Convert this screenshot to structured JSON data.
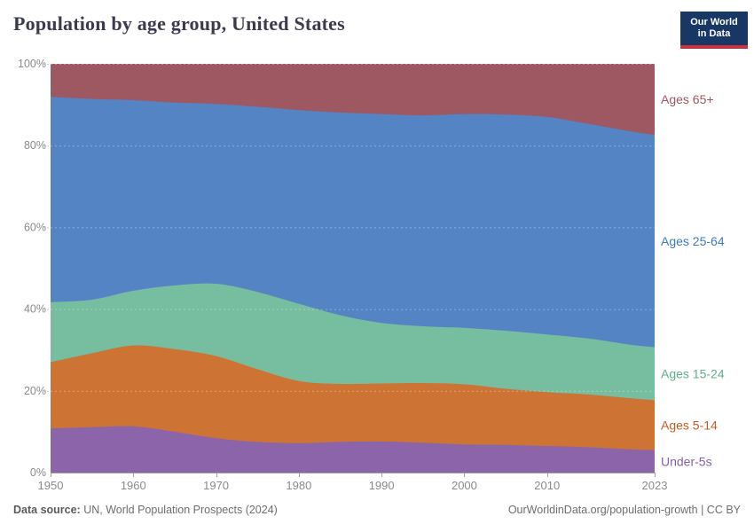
{
  "header": {
    "title": "Population by age group, United States"
  },
  "brand": {
    "line1": "Our World",
    "line2": "in Data"
  },
  "footer": {
    "source_label": "Data source:",
    "source_text": " UN, World Population Prospects (2024)",
    "credit": "OurWorldinData.org/population-growth | CC BY"
  },
  "chart_data": {
    "type": "area",
    "stacked": true,
    "title": "Population by age group, United States",
    "unit": "%",
    "ylim": [
      0,
      100
    ],
    "yticks": [
      0,
      20,
      40,
      60,
      80,
      100
    ],
    "ytick_labels": [
      "0%",
      "20%",
      "40%",
      "60%",
      "80%",
      "100%"
    ],
    "xticks": [
      1950,
      1960,
      1970,
      1980,
      1990,
      2000,
      2010,
      2023
    ],
    "xtick_labels": [
      "1950",
      "1960",
      "1970",
      "1980",
      "1990",
      "2000",
      "2010",
      "2023"
    ],
    "grid": "dashed-horizontal",
    "legend_position": "right",
    "x": [
      1950,
      1955,
      1960,
      1965,
      1970,
      1975,
      1980,
      1985,
      1990,
      1995,
      2000,
      2005,
      2010,
      2015,
      2020,
      2023
    ],
    "series": [
      {
        "id": "under-5s",
        "name": "Under-5s",
        "color": "#8c64aa",
        "label_color": "#8461a8",
        "values": [
          10.8,
          11.1,
          11.3,
          10.0,
          8.4,
          7.5,
          7.2,
          7.5,
          7.6,
          7.3,
          6.9,
          6.8,
          6.5,
          6.2,
          5.7,
          5.5
        ]
      },
      {
        "id": "ages-5-14",
        "name": "Ages 5-14",
        "color": "#cd7334",
        "label_color": "#c55d23",
        "values": [
          16.2,
          18.1,
          19.8,
          20.2,
          20.1,
          17.8,
          15.2,
          14.2,
          14.2,
          14.6,
          14.7,
          13.7,
          13.2,
          12.9,
          12.5,
          12.2
        ]
      },
      {
        "id": "ages-15-24",
        "name": "Ages 15-24",
        "color": "#77bd9f",
        "label_color": "#5fae8c",
        "values": [
          14.7,
          13.1,
          13.4,
          15.6,
          17.7,
          18.9,
          18.9,
          16.8,
          14.8,
          13.9,
          13.8,
          14.2,
          14.1,
          13.7,
          13.1,
          13.0
        ]
      },
      {
        "id": "ages-25-64",
        "name": "Ages 25-64",
        "color": "#5584c5",
        "label_color": "#4079bc",
        "values": [
          50.2,
          49.1,
          46.6,
          44.7,
          44.0,
          45.3,
          47.4,
          49.6,
          51.1,
          51.6,
          52.3,
          52.9,
          53.2,
          52.5,
          52.2,
          51.9
        ]
      },
      {
        "id": "ages-65plus",
        "name": "Ages 65+",
        "color": "#9e5861",
        "label_color": "#9e5861",
        "values": [
          8.1,
          8.6,
          8.9,
          9.5,
          9.8,
          10.5,
          11.3,
          11.9,
          12.3,
          12.6,
          12.3,
          12.4,
          13.0,
          14.7,
          16.5,
          17.4
        ]
      }
    ]
  }
}
